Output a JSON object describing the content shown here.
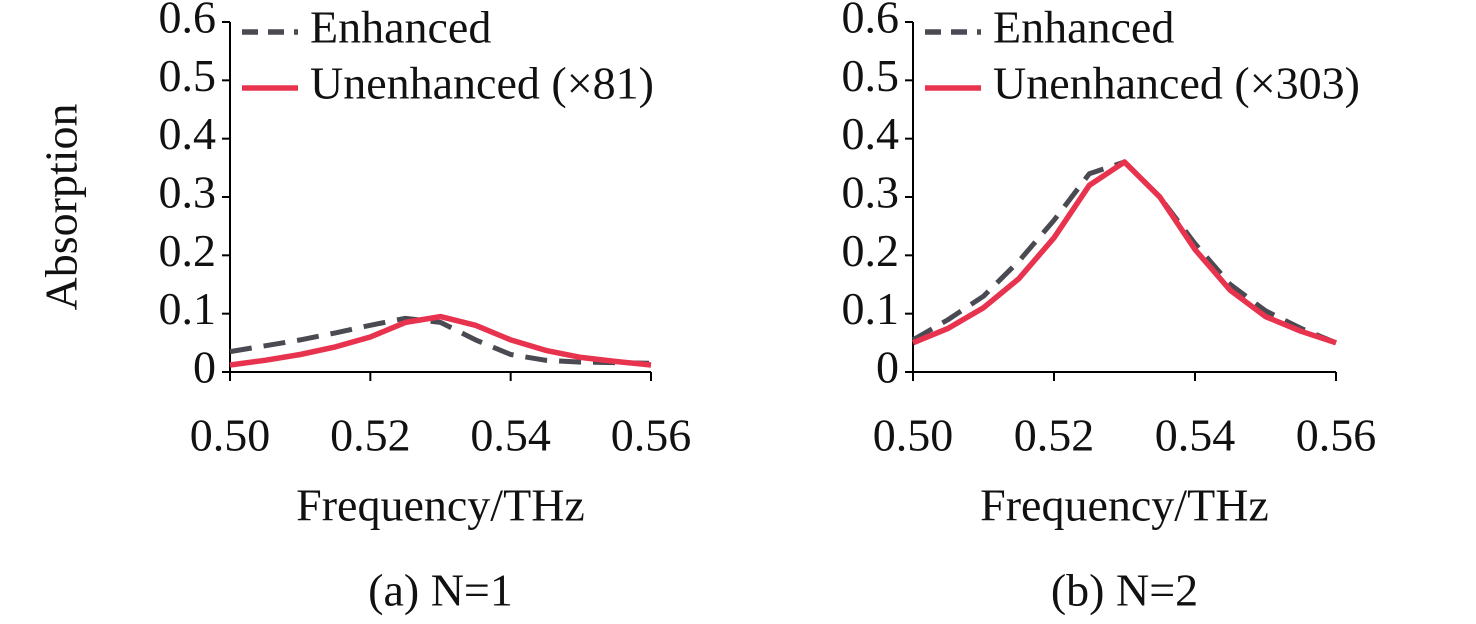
{
  "chart_data": [
    {
      "type": "line",
      "ylabel": "Absorption",
      "xlabel": "Frequency/THz",
      "caption": "(a) N=1",
      "x": [
        0.5,
        0.505,
        0.51,
        0.515,
        0.52,
        0.525,
        0.53,
        0.535,
        0.54,
        0.545,
        0.55,
        0.555,
        0.56
      ],
      "series": [
        {
          "name": "Enhanced",
          "color": "#4a4a52",
          "dashed": true,
          "values": [
            0.035,
            0.045,
            0.055,
            0.067,
            0.08,
            0.092,
            0.085,
            0.055,
            0.03,
            0.02,
            0.017,
            0.016,
            0.015
          ]
        },
        {
          "name": "Unenhanced (×81)",
          "color": "#e8334f",
          "dashed": false,
          "values": [
            0.012,
            0.02,
            0.03,
            0.043,
            0.06,
            0.085,
            0.095,
            0.08,
            0.055,
            0.037,
            0.025,
            0.018,
            0.012
          ]
        }
      ],
      "xlim": [
        0.5,
        0.56
      ],
      "xticks": [
        {
          "value": 0.5,
          "label": "0.50"
        },
        0.52,
        0.54,
        0.56
      ],
      "ylim": [
        0,
        0.6
      ],
      "yticks": [
        0,
        0.1,
        0.2,
        0.3,
        0.4,
        0.5,
        0.6
      ],
      "legend": "top-left"
    },
    {
      "type": "line",
      "xlabel": "Frequency/THz",
      "caption": "(b) N=2",
      "x": [
        0.5,
        0.505,
        0.51,
        0.515,
        0.52,
        0.525,
        0.53,
        0.535,
        0.54,
        0.545,
        0.55,
        0.555,
        0.56
      ],
      "series": [
        {
          "name": "Enhanced",
          "color": "#4a4a52",
          "dashed": true,
          "values": [
            0.055,
            0.09,
            0.13,
            0.19,
            0.26,
            0.34,
            0.36,
            0.3,
            0.22,
            0.15,
            0.105,
            0.075,
            0.05
          ]
        },
        {
          "name": "Unenhanced (×303)",
          "color": "#e8334f",
          "dashed": false,
          "values": [
            0.05,
            0.075,
            0.11,
            0.16,
            0.23,
            0.32,
            0.36,
            0.3,
            0.21,
            0.14,
            0.095,
            0.07,
            0.05
          ]
        }
      ],
      "xlim": [
        0.5,
        0.56
      ],
      "xticks": [
        {
          "value": 0.5,
          "label": "0.50"
        },
        0.52,
        0.54,
        0.56
      ],
      "ylim": [
        0,
        0.6
      ],
      "yticks": [
        0,
        0.1,
        0.2,
        0.3,
        0.4,
        0.5,
        0.6
      ],
      "legend": "top-left"
    }
  ]
}
